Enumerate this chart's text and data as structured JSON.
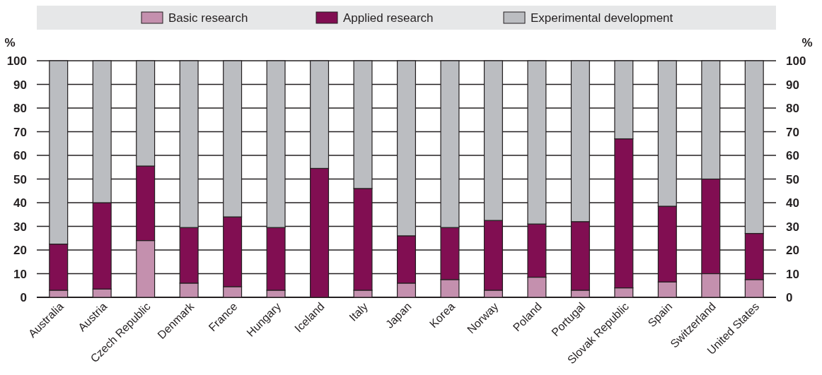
{
  "chart_data": {
    "type": "bar",
    "stacked": true,
    "ylabel": "%",
    "y2label": "%",
    "categories": [
      "Australia",
      "Austria",
      "Czech Republic",
      "Denmark",
      "France",
      "Hungary",
      "Iceland",
      "Italy",
      "Japan",
      "Korea",
      "Norway",
      "Poland",
      "Portugal",
      "Slovak Republic",
      "Spain",
      "Switzerland",
      "United States"
    ],
    "series": [
      {
        "name": "Basic research",
        "color": "#c490ae",
        "values": [
          3,
          3.5,
          24,
          6,
          4.5,
          3,
          0,
          3,
          6,
          7.5,
          3,
          8.5,
          3,
          4,
          6.5,
          10,
          7.5
        ]
      },
      {
        "name": "Applied research",
        "color": "#810e52",
        "values": [
          19.5,
          36.5,
          31.5,
          23.5,
          29.5,
          26.5,
          54.5,
          43,
          20,
          22,
          29.5,
          22.5,
          29,
          63,
          32,
          40,
          19.5
        ]
      },
      {
        "name": "Experimental development",
        "color": "#bbbdc1",
        "values": [
          77.5,
          60,
          44.5,
          70.5,
          66,
          70.5,
          45.5,
          54,
          74,
          70.5,
          67.5,
          69,
          68,
          33,
          61.5,
          50,
          73
        ]
      }
    ],
    "ylim": [
      0,
      100
    ],
    "yticks": [
      0,
      10,
      20,
      30,
      40,
      50,
      60,
      70,
      80,
      90,
      100
    ],
    "y2lim": [
      0,
      100
    ],
    "y2ticks": [
      0,
      10,
      20,
      30,
      40,
      50,
      60,
      70,
      80,
      90,
      100
    ],
    "grid": "y",
    "legend": "top"
  }
}
